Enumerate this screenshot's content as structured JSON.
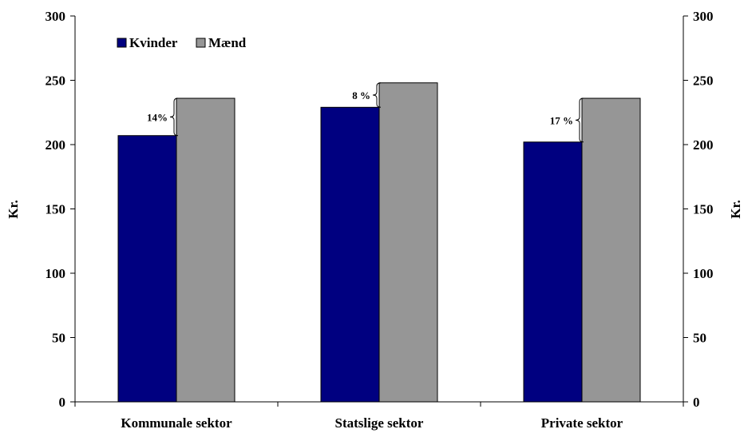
{
  "chart_data": {
    "type": "bar",
    "categories": [
      "Kommunale sektor",
      "Statslige sektor",
      "Private sektor"
    ],
    "series": [
      {
        "name": "Kvinder",
        "color": "#000080",
        "values": [
          207,
          229,
          202
        ]
      },
      {
        "name": "Mænd",
        "color": "#969696",
        "values": [
          236,
          248,
          236
        ]
      }
    ],
    "annotations": [
      "14%",
      "8 %",
      "17 %"
    ],
    "ylabel_left": "Kr.",
    "ylabel_right": "Kr.",
    "ylim": [
      0,
      300
    ],
    "yticks": [
      "0",
      "50",
      "100",
      "150",
      "200",
      "250",
      "300"
    ],
    "grid": false,
    "legend_position": "top-left"
  }
}
